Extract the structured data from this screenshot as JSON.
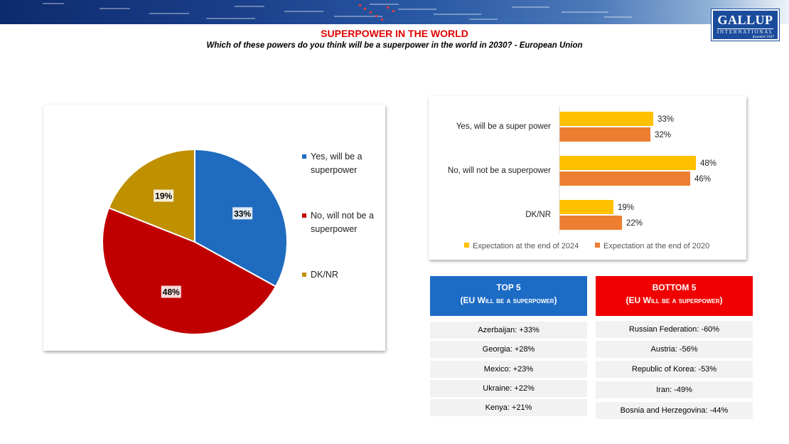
{
  "header": {
    "title": "SUPERPOWER IN THE WORLD",
    "subtitle": "Which of these powers do you think will be a superpower in the world in 2030? - European Union",
    "logo": {
      "name": "GALLUP",
      "tagline": "INTERNATIONAL",
      "founded": "founded 1947"
    }
  },
  "colors": {
    "blue": "#1f6bbf",
    "red": "#c00000",
    "gold": "#bf9000",
    "yellow": "#ffc000",
    "orange": "#ed7d31"
  },
  "chart_data": [
    {
      "type": "pie",
      "categories": [
        "Yes, will be a superpower",
        "No, will not be a superpower",
        "DK/NR"
      ],
      "legend_lines": [
        [
          "Yes, will be a",
          "superpower"
        ],
        [
          "No, will not be a",
          "superpower"
        ],
        [
          "DK/NR"
        ]
      ],
      "values": [
        33,
        48,
        19
      ],
      "labels": [
        "33%",
        "48%",
        "19%"
      ],
      "colors": [
        "#1f6bbf",
        "#c00000",
        "#bf9000"
      ],
      "legend": "right"
    },
    {
      "type": "bar",
      "orientation": "horizontal",
      "categories": [
        "Yes, will be a super power",
        "No, will not be a superpower",
        "DK/NR"
      ],
      "series": [
        {
          "name": "Expectation at the end of 2024",
          "values": [
            33,
            48,
            19
          ],
          "labels": [
            "33%",
            "48%",
            "19%"
          ],
          "color": "#ffc000"
        },
        {
          "name": "Expectation at the end of 2020",
          "values": [
            32,
            46,
            22
          ],
          "labels": [
            "32%",
            "46%",
            "22%"
          ],
          "color": "#ed7d31"
        }
      ],
      "legend": "bottom"
    }
  ],
  "top5": {
    "title": "TOP 5",
    "subtitle": "(EU Will be a superpower)",
    "items": [
      "Azerbaijan: +33%",
      "Georgia: +28%",
      "Mexico: +23%",
      "Ukraine: +22%",
      "Kenya: +21%"
    ]
  },
  "bottom5": {
    "title": "BOTTOM 5",
    "subtitle": "(EU Will be a superpower)",
    "items": [
      "Russian Federation: -60%",
      "Austria: -56%",
      "Republic of Korea: -53%",
      "Iran: -49%",
      "Bosnia and Herzegovina: -44%"
    ]
  }
}
